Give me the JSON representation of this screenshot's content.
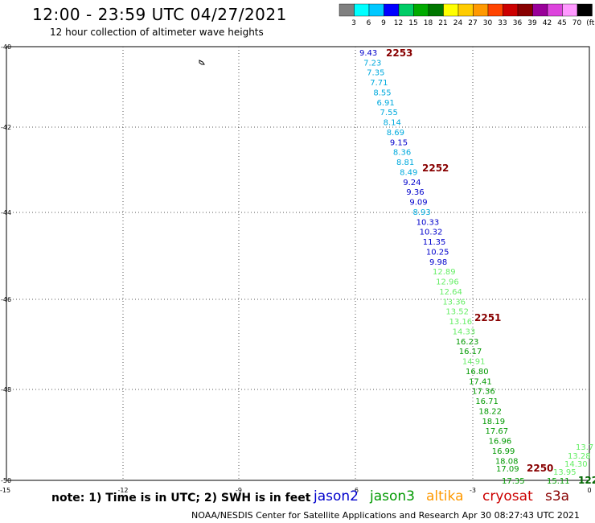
{
  "header": {
    "title": "12:00 - 23:59 UTC 04/27/2021",
    "subtitle": "12 hour collection of altimeter wave heights"
  },
  "colorbar": {
    "labels": [
      "3",
      "6",
      "9",
      "12",
      "15",
      "18",
      "21",
      "24",
      "27",
      "30",
      "33",
      "36",
      "39",
      "42",
      "45",
      "70",
      "(ft)"
    ],
    "colors": [
      "#808080",
      "#00ffff",
      "#00c8ff",
      "#0000ff",
      "#00cc66",
      "#00aa00",
      "#007700",
      "#ffff00",
      "#ffcc00",
      "#ff9900",
      "#ff4400",
      "#cc0000",
      "#880000",
      "#990099",
      "#dd44dd",
      "#ff99ff",
      "#000000"
    ]
  },
  "map": {
    "lat_ticks": [
      "-40",
      "-42",
      "-44",
      "-46",
      "-48",
      "-50"
    ],
    "lon_ticks": [
      "-15",
      "-12",
      "-9",
      "-6",
      "-3",
      "0"
    ],
    "lat_range": [
      -50,
      -40
    ],
    "lon_range": [
      -15,
      0
    ]
  },
  "tracks": [
    {
      "satellite": "altika",
      "points": [
        {
          "v": "9.43",
          "c": "#0000cc"
        },
        {
          "v": "7.23",
          "c": "#00aadd"
        },
        {
          "v": "7.35",
          "c": "#00aadd"
        },
        {
          "v": "7.71",
          "c": "#00aadd"
        },
        {
          "v": "8.55",
          "c": "#00aadd"
        },
        {
          "v": "6.91",
          "c": "#00aadd"
        },
        {
          "v": "7.55",
          "c": "#00aadd"
        },
        {
          "v": "8.14",
          "c": "#00aadd"
        },
        {
          "v": "8.69",
          "c": "#00aadd"
        },
        {
          "v": "9.15",
          "c": "#0000cc"
        },
        {
          "v": "8.36",
          "c": "#00aadd"
        },
        {
          "v": "8.81",
          "c": "#00aadd"
        },
        {
          "v": "8.49",
          "c": "#00aadd"
        },
        {
          "v": "9.24",
          "c": "#0000cc"
        },
        {
          "v": "9.36",
          "c": "#0000cc"
        },
        {
          "v": "9.09",
          "c": "#0000cc"
        },
        {
          "v": "8.93",
          "c": "#00aadd"
        },
        {
          "v": "10.33",
          "c": "#0000cc"
        },
        {
          "v": "10.32",
          "c": "#0000cc"
        },
        {
          "v": "11.35",
          "c": "#0000cc"
        },
        {
          "v": "10.25",
          "c": "#0000cc"
        },
        {
          "v": "9.98",
          "c": "#0000cc"
        },
        {
          "v": "12.89",
          "c": "#66ee66"
        },
        {
          "v": "12.96",
          "c": "#66ee66"
        },
        {
          "v": "12.64",
          "c": "#66ee66"
        },
        {
          "v": "13.36",
          "c": "#66ee66"
        },
        {
          "v": "13.52",
          "c": "#66ee66"
        },
        {
          "v": "13.16",
          "c": "#66ee66"
        },
        {
          "v": "14.33",
          "c": "#66ee66"
        },
        {
          "v": "16.23",
          "c": "#009900"
        },
        {
          "v": "16.17",
          "c": "#009900"
        },
        {
          "v": "14.91",
          "c": "#66ee66"
        },
        {
          "v": "16.80",
          "c": "#009900"
        },
        {
          "v": "17.41",
          "c": "#009900"
        },
        {
          "v": "17.36",
          "c": "#009900"
        },
        {
          "v": "16.71",
          "c": "#009900"
        },
        {
          "v": "18.22",
          "c": "#009900"
        },
        {
          "v": "18.19",
          "c": "#009900"
        },
        {
          "v": "17.67",
          "c": "#009900"
        },
        {
          "v": "16.96",
          "c": "#009900"
        },
        {
          "v": "16.99",
          "c": "#009900"
        },
        {
          "v": "18.08",
          "c": "#009900"
        },
        {
          "v": "17.09",
          "c": "#009900"
        },
        {
          "v": "17.35",
          "c": "#009900"
        }
      ],
      "times": [
        "2253",
        "2252",
        "2251",
        "2250"
      ]
    },
    {
      "satellite": "jason3",
      "points": [
        {
          "v": "13.7",
          "c": "#66ee66"
        },
        {
          "v": "13.28",
          "c": "#66ee66"
        },
        {
          "v": "14.30",
          "c": "#66ee66"
        },
        {
          "v": "13.95",
          "c": "#66ee66"
        },
        {
          "v": "15.11",
          "c": "#009900"
        }
      ],
      "times": [
        "122"
      ]
    }
  ],
  "legend": {
    "note": "note:  1) Time is in UTC;  2) SWH is in feet",
    "satellites": [
      {
        "name": "jason2",
        "color": "#0000cc"
      },
      {
        "name": "jason3",
        "color": "#009900"
      },
      {
        "name": "altika",
        "color": "#ff9900"
      },
      {
        "name": "cryosat",
        "color": "#cc0000"
      },
      {
        "name": "s3a",
        "color": "#880000"
      }
    ]
  },
  "footer": "NOAA/NESDIS Center for Satellite Applications and Research    Apr 30 08:27:43 UTC 2021"
}
